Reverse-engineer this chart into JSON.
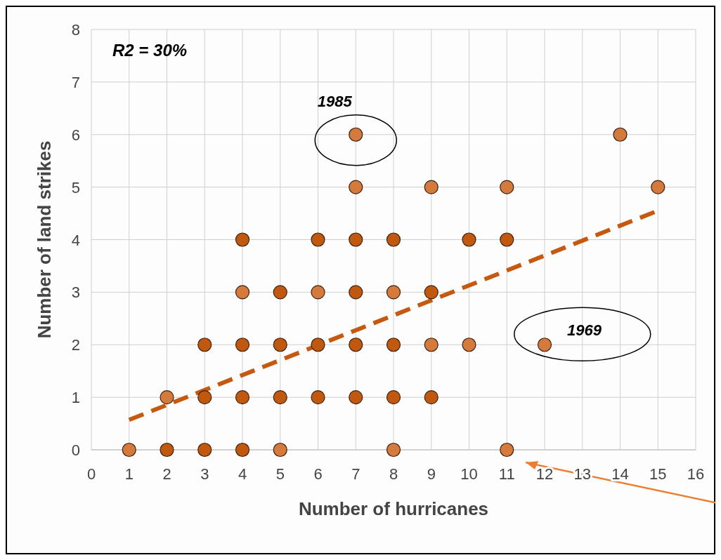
{
  "chart_data": {
    "type": "scatter",
    "xlabel": "Number of hurricanes",
    "ylabel": "Number of land strikes",
    "xlim": [
      0,
      16
    ],
    "ylim": [
      0,
      8
    ],
    "xticks": [
      0,
      1,
      2,
      3,
      4,
      5,
      6,
      7,
      8,
      9,
      10,
      11,
      12,
      13,
      14,
      15,
      16
    ],
    "yticks": [
      0,
      1,
      2,
      3,
      4,
      5,
      6,
      7,
      8
    ],
    "grid": true,
    "marker": "circle",
    "annotations": [
      "R2 = 30%",
      {
        "text": "1985",
        "x": 7,
        "y": 6
      },
      "1969"
    ],
    "series": [
      {
        "x": [
          1,
          2,
          3,
          4,
          5,
          8,
          11,
          2,
          3,
          4,
          5,
          6,
          7,
          8,
          9,
          3,
          4,
          5,
          6,
          7,
          8,
          9,
          10,
          12,
          4,
          5,
          6,
          7,
          8,
          9,
          4,
          6,
          7,
          8,
          10,
          11,
          7,
          9,
          11,
          15,
          7,
          14
        ],
        "values": [
          0,
          0,
          0,
          0,
          0,
          0,
          0,
          1,
          1,
          1,
          1,
          1,
          1,
          1,
          1,
          2,
          2,
          2,
          2,
          2,
          2,
          2,
          2,
          2,
          3,
          3,
          3,
          3,
          3,
          3,
          4,
          4,
          4,
          4,
          4,
          4,
          5,
          5,
          5,
          5,
          6,
          6
        ],
        "colors": [
          "#d47a3c",
          "#c0580f",
          "#c0580f",
          "#c0580f",
          "#d47a3c",
          "#d47a3c",
          "#d47a3c",
          "#d47a3c",
          "#c0580f",
          "#c0580f",
          "#c0580f",
          "#c0580f",
          "#c0580f",
          "#c0580f",
          "#c0580f",
          "#c0580f",
          "#c0580f",
          "#c0580f",
          "#c0580f",
          "#c0580f",
          "#c0580f",
          "#d47a3c",
          "#d47a3c",
          "#d47a3c",
          "#d47a3c",
          "#c0580f",
          "#d47a3c",
          "#c0580f",
          "#d47a3c",
          "#c0580f",
          "#c0580f",
          "#c0580f",
          "#c0580f",
          "#c0580f",
          "#c0580f",
          "#c0580f",
          "#d47a3c",
          "#d47a3c",
          "#d47a3c",
          "#d47a3c",
          "#d47a3c",
          "#d47a3c"
        ]
      },
      {
        "type": "line",
        "x": [
          1,
          15
        ],
        "values": [
          0.57,
          4.55
        ],
        "color": "#c5590f",
        "line_style": "dashed",
        "marker": "none"
      }
    ]
  }
}
